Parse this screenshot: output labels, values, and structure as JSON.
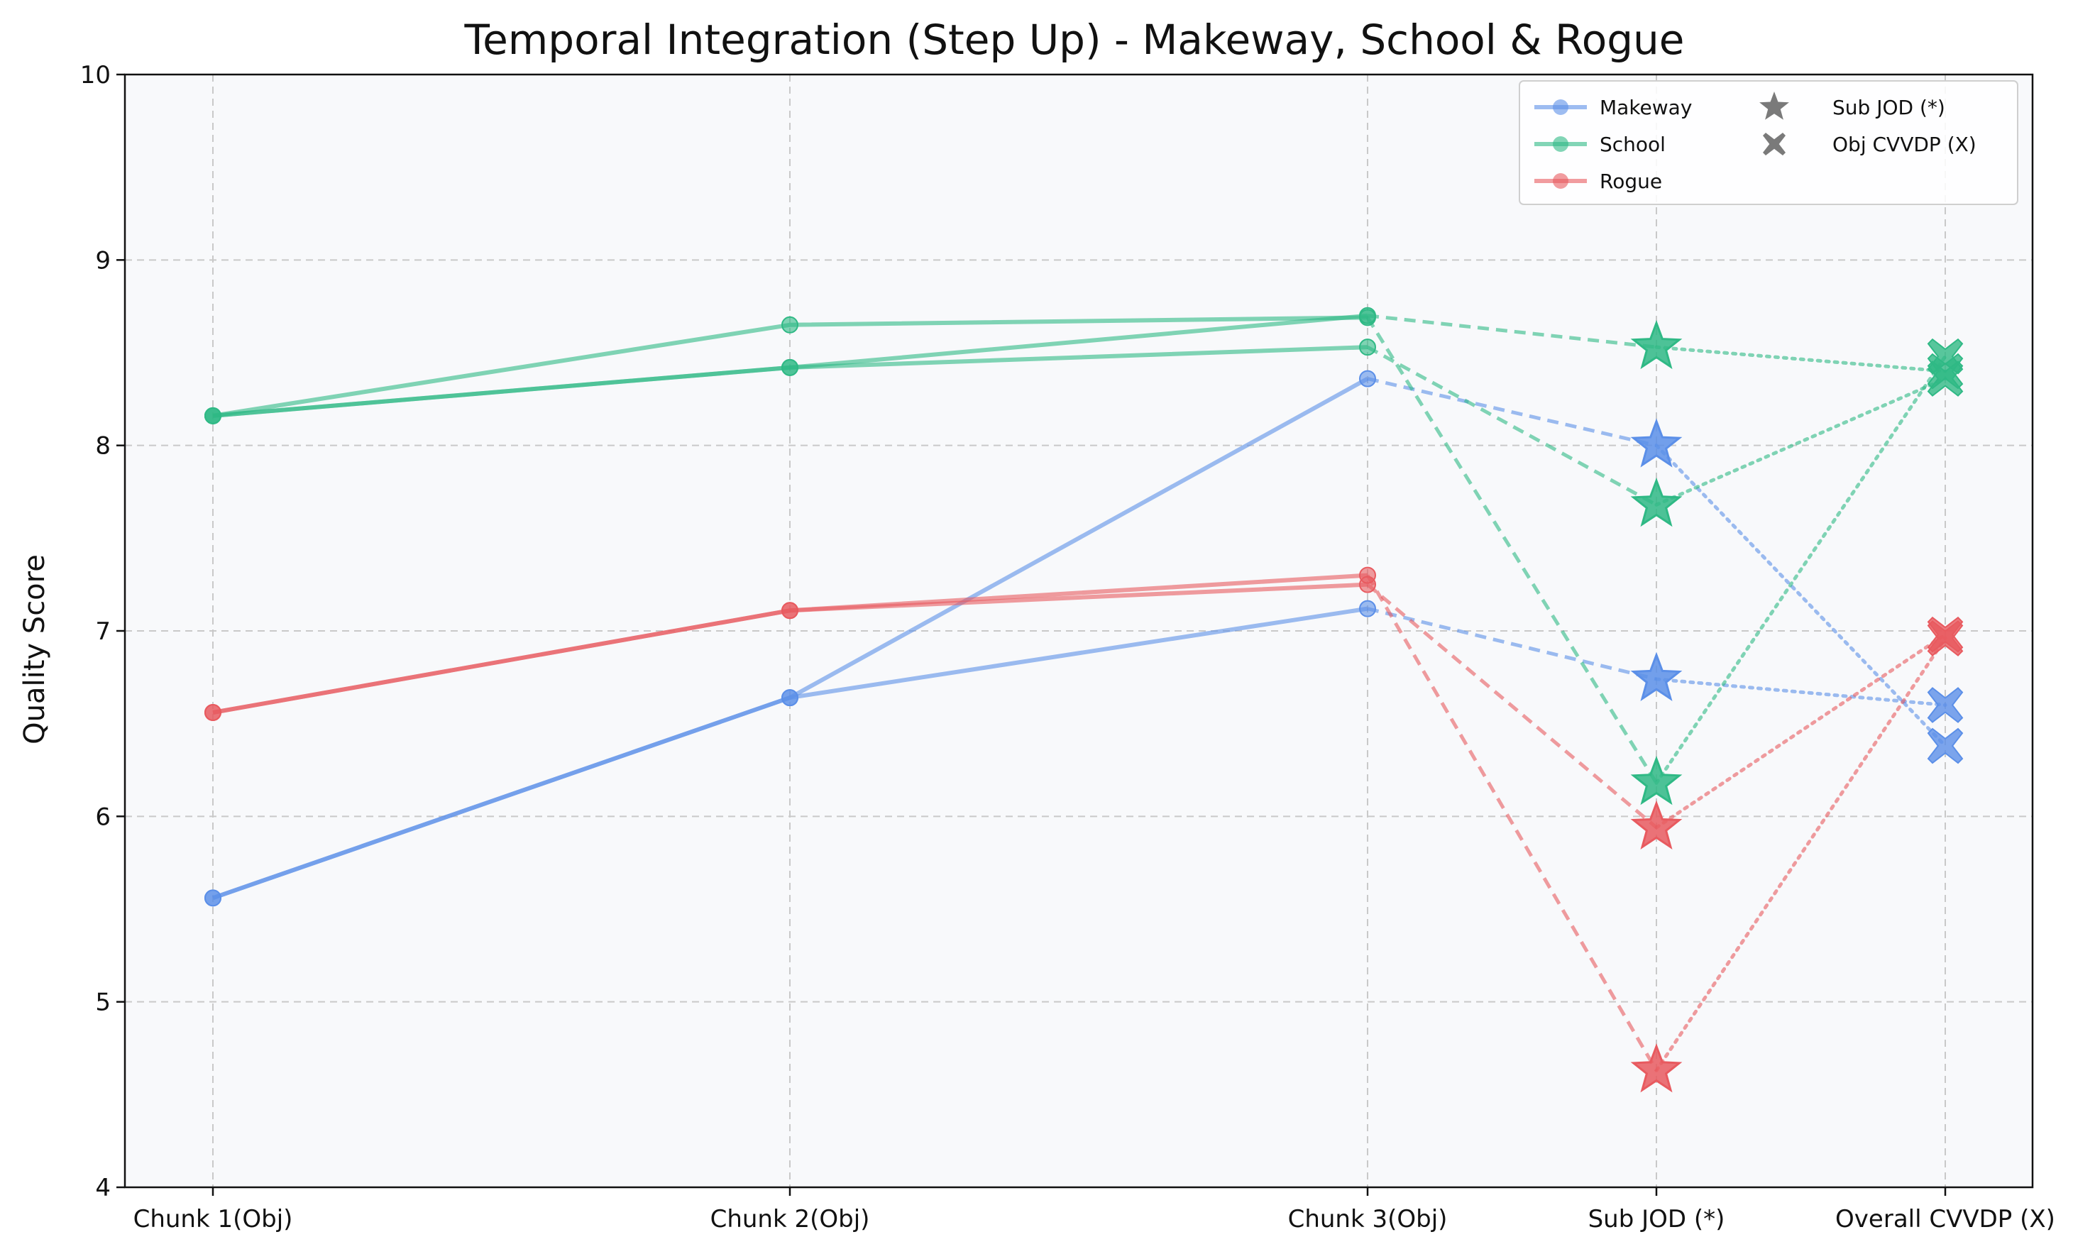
{
  "chart_data": {
    "type": "line",
    "title": "Temporal Integration (Step Up) - Makeway, School & Rogue",
    "xlabel": "",
    "ylabel": "Quality Score",
    "ylim": [
      4,
      10
    ],
    "yticks": [
      "4",
      "5",
      "6",
      "7",
      "8",
      "9",
      "10"
    ],
    "categories": [
      "Chunk 1(Obj)",
      "Chunk 2(Obj)",
      "Chunk 3(Obj)",
      "Sub JOD (*)",
      "Overall CVVDP (X)"
    ],
    "grid": true,
    "legend_position": "top-right",
    "legend": {
      "series": [
        "Makeway",
        "School",
        "Rogue"
      ],
      "markers": [
        "Sub JOD (*)",
        "Obj CVVDP (X)"
      ]
    },
    "series_colors": {
      "Makeway": "#5b8fe8",
      "School": "#2fb985",
      "Rogue": "#e85a5f"
    },
    "series": [
      {
        "name": "Makeway",
        "chunks": [
          5.56,
          6.64,
          8.36
        ],
        "sub_jod": 8.0,
        "overall_cvvdp": 6.38
      },
      {
        "name": "Makeway",
        "chunks": [
          5.56,
          6.64,
          7.12
        ],
        "sub_jod": 6.74,
        "overall_cvvdp": 6.6
      },
      {
        "name": "School",
        "chunks": [
          8.16,
          8.42,
          8.7
        ],
        "sub_jod": 8.53,
        "overall_cvvdp": 8.4
      },
      {
        "name": "School",
        "chunks": [
          8.16,
          8.65,
          8.69
        ],
        "sub_jod": 6.18,
        "overall_cvvdp": 8.48
      },
      {
        "name": "School",
        "chunks": [
          8.16,
          8.42,
          8.53
        ],
        "sub_jod": 7.68,
        "overall_cvvdp": 8.36
      },
      {
        "name": "Rogue",
        "chunks": [
          6.56,
          7.11,
          7.3
        ],
        "sub_jod": 4.63,
        "overall_cvvdp": 6.96
      },
      {
        "name": "Rogue",
        "chunks": [
          6.56,
          7.11,
          7.25
        ],
        "sub_jod": 5.94,
        "overall_cvvdp": 6.98
      }
    ]
  }
}
